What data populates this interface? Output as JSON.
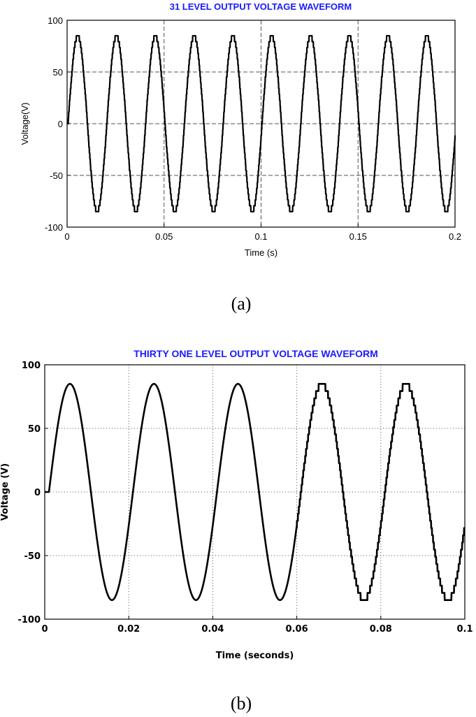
{
  "chart_data": [
    {
      "type": "line",
      "title": "31 LEVEL OUTPUT VOLTAGE WAVEFORM",
      "xlabel": "Time (s)",
      "ylabel": "Voltage(V)",
      "xlim": [
        0,
        0.2
      ],
      "ylim": [
        -100,
        100
      ],
      "xticks": [
        0,
        0.05,
        0.1,
        0.15,
        0.2
      ],
      "xtick_labels": [
        "0",
        "0.05",
        "0.1",
        "0.15",
        "0.2"
      ],
      "yticks": [
        -100,
        -50,
        0,
        50,
        100
      ],
      "ytick_labels": [
        "-100",
        "-50",
        "0",
        "50",
        "100"
      ],
      "grid": "dashed",
      "series": [
        {
          "name": "output voltage",
          "waveform": "sine",
          "amplitude": 85,
          "frequency_hz": 50,
          "start_time": 0.0005,
          "staircase_levels": 31
        }
      ],
      "caption": "(a)"
    },
    {
      "type": "line",
      "title": "THIRTY ONE LEVEL OUTPUT VOLTAGE WAVEFORM",
      "xlabel": "Time (seconds)",
      "ylabel": "Voltage (V)",
      "xlim": [
        0,
        0.1
      ],
      "ylim": [
        -100,
        100
      ],
      "xticks": [
        0,
        0.02,
        0.04,
        0.06,
        0.08,
        0.1
      ],
      "xtick_labels": [
        "0",
        "0.02",
        "0.04",
        "0.06",
        "0.08",
        "0.1"
      ],
      "yticks": [
        -100,
        -50,
        0,
        50,
        100
      ],
      "ytick_labels": [
        "-100",
        "-50",
        "0",
        "50",
        "100"
      ],
      "grid": "dotted",
      "series": [
        {
          "name": "output voltage",
          "waveform": "sine",
          "amplitude": 85,
          "frequency_hz": 50,
          "start_time": 0.001,
          "staircase_levels": 31,
          "staircase_visible_from": 0.06
        }
      ],
      "caption": "(b)"
    }
  ]
}
